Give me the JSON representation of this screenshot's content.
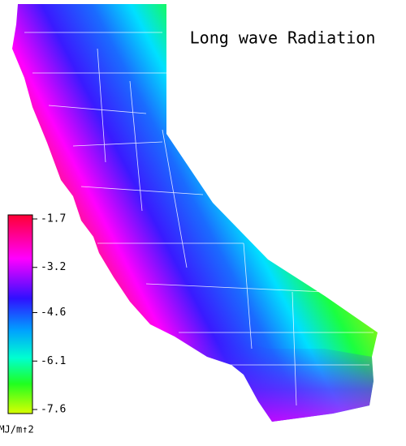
{
  "title": "Long wave Radiation",
  "colorbar": {
    "ticks": [
      -1.7,
      -3.2,
      -4.6,
      -6.1,
      -7.6
    ],
    "unit": "MJ/m↑2"
  }
}
